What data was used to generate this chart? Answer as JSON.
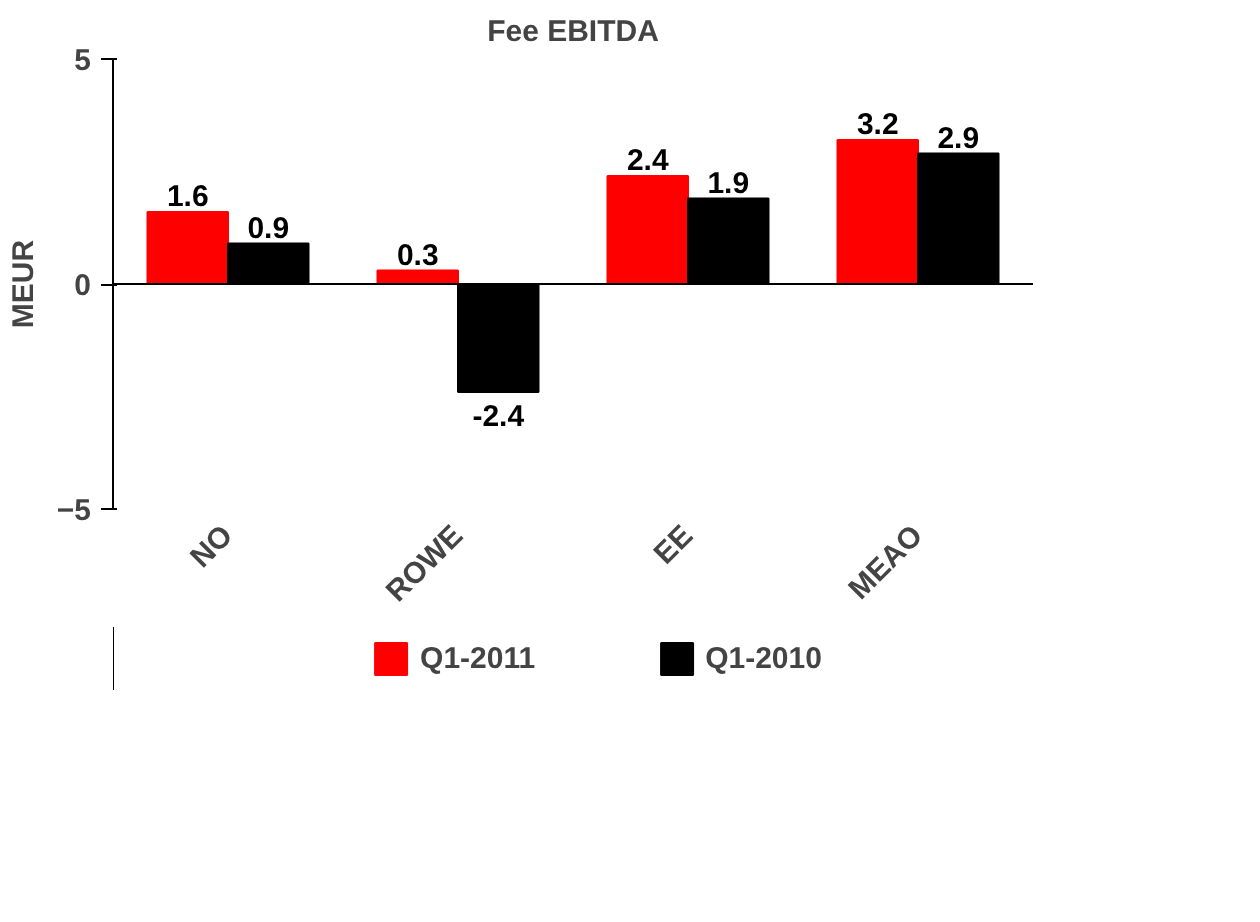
{
  "chart_data": {
    "type": "bar",
    "title": "Fee EBITDA",
    "ylabel": "MEUR",
    "categories": [
      "NO",
      "ROWE",
      "EE",
      "MEAO"
    ],
    "series": [
      {
        "name": "Q1-2011",
        "color": "#ff0000",
        "values": [
          1.6,
          0.3,
          2.4,
          3.2
        ]
      },
      {
        "name": "Q1-2010",
        "color": "#000000",
        "values": [
          0.9,
          -2.4,
          1.9,
          2.9
        ]
      }
    ],
    "ylim": [
      -5,
      5
    ],
    "yticks": [
      -5,
      0,
      5
    ],
    "legend": "bottom",
    "data_labels": true
  }
}
